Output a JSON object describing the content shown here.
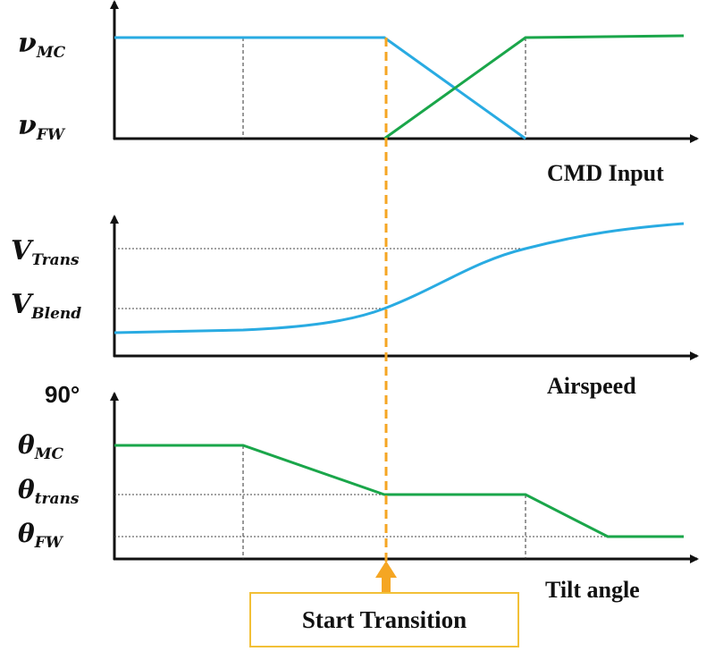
{
  "panel_cmd": {
    "y_high": "ν",
    "y_high_sub": "MC",
    "y_low": "ν",
    "y_low_sub": "FW",
    "x_label": "CMD Input"
  },
  "panel_airspeed": {
    "y_high": "V",
    "y_high_sub": "Trans",
    "y_low": "V",
    "y_low_sub": "Blend",
    "x_label": "Airspeed"
  },
  "panel_tilt": {
    "y_top": "90°",
    "y_1": "θ",
    "y_1_sub": "MC",
    "y_2": "θ",
    "y_2_sub": "trans",
    "y_3": "θ",
    "y_3_sub": "FW",
    "x_label": "Tilt angle"
  },
  "marker": {
    "label": "Start Transition"
  },
  "colors": {
    "blue": "#29abe2",
    "green": "#1aa64a",
    "orange": "#f5a623",
    "box_border": "#f2c037"
  }
}
